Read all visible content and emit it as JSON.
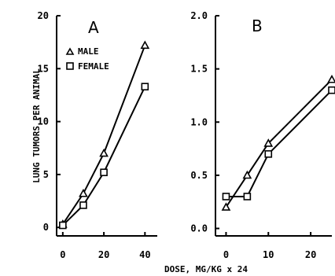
{
  "chart_data": [
    {
      "type": "line",
      "panel_label": "A",
      "ylabel": "LUNG TUMORS PER ANIMAL",
      "xlim": [
        -3,
        46
      ],
      "ylim": [
        -0.8,
        20
      ],
      "xticks": [
        0,
        20,
        40
      ],
      "xtick_labels": [
        "0",
        "20",
        "40"
      ],
      "yticks": [
        0,
        5,
        10,
        15,
        20
      ],
      "ytick_labels": [
        "0",
        "5",
        "10",
        "15",
        "20"
      ],
      "legend_placement": "top-left",
      "series": [
        {
          "name": "MALE",
          "marker": "triangle",
          "x": [
            0,
            10,
            20,
            40
          ],
          "y": [
            0.3,
            3.2,
            7.0,
            17.2
          ]
        },
        {
          "name": "FEMALE",
          "marker": "square",
          "x": [
            0,
            10,
            20,
            40
          ],
          "y": [
            0.2,
            2.1,
            5.2,
            13.3
          ]
        }
      ]
    },
    {
      "type": "line",
      "panel_label": "B",
      "xlim": [
        -2.5,
        25
      ],
      "ylim": [
        -0.07,
        2.0
      ],
      "xticks": [
        0,
        10,
        20
      ],
      "xtick_labels": [
        "0",
        "10",
        "20"
      ],
      "yticks": [
        0.0,
        0.5,
        1.0,
        1.5,
        2.0
      ],
      "ytick_labels": [
        "0.0",
        "0.5",
        "1.0",
        "1.5",
        "2.0"
      ],
      "series": [
        {
          "name": "MALE",
          "marker": "triangle",
          "x": [
            0,
            5,
            10,
            25
          ],
          "y": [
            0.2,
            0.5,
            0.8,
            1.4
          ]
        },
        {
          "name": "FEMALE",
          "marker": "square",
          "x": [
            0,
            5,
            10,
            25
          ],
          "y": [
            0.3,
            0.3,
            0.7,
            1.3
          ]
        }
      ]
    }
  ],
  "xlabel": "DOSE, MG/KG x 24"
}
